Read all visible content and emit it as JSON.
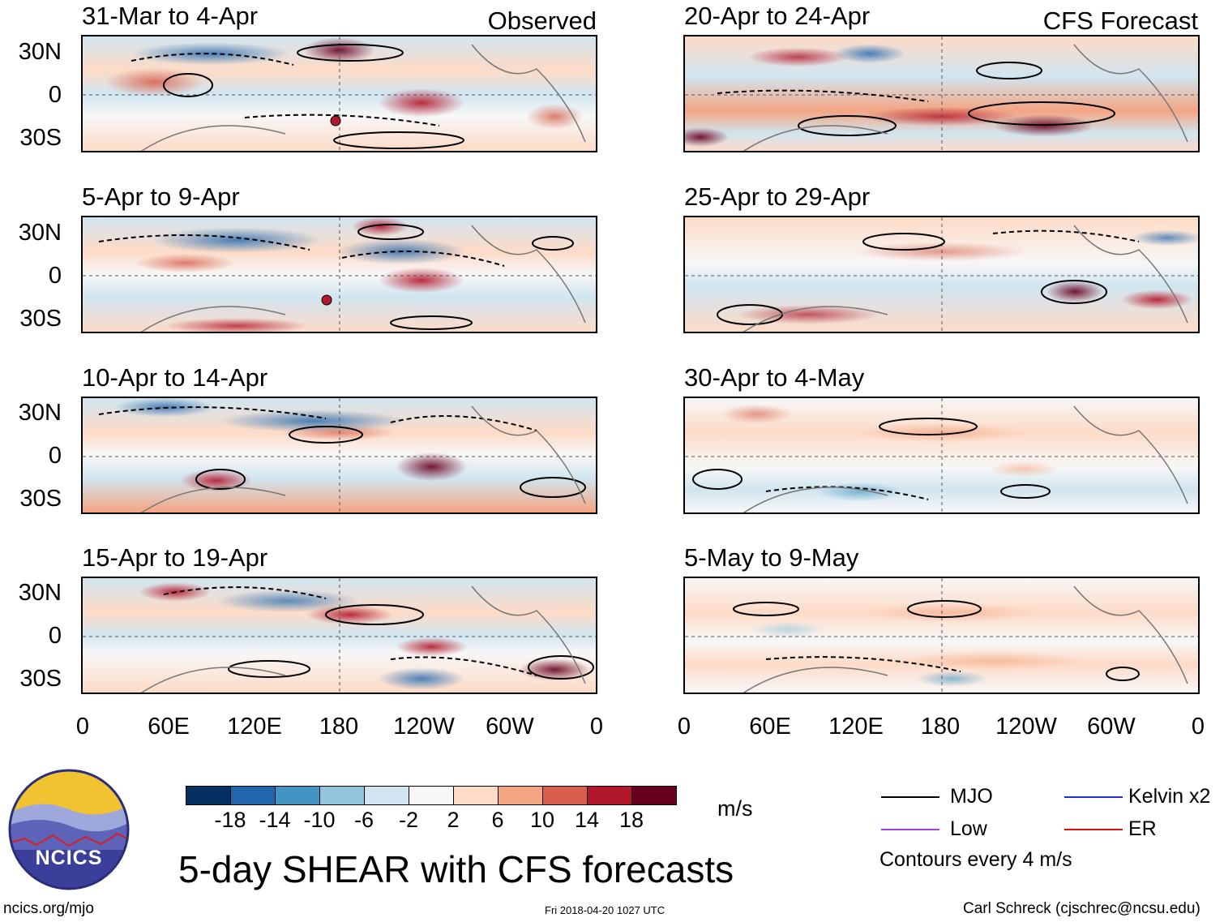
{
  "header": {
    "observed_label": "Observed",
    "forecast_label": "CFS Forecast"
  },
  "panels": {
    "observed": [
      {
        "title": "31-Mar to 4-Apr"
      },
      {
        "title": "5-Apr to 9-Apr"
      },
      {
        "title": "10-Apr to 14-Apr"
      },
      {
        "title": "15-Apr to 19-Apr"
      }
    ],
    "forecast": [
      {
        "title": "20-Apr to 24-Apr"
      },
      {
        "title": "25-Apr to 29-Apr"
      },
      {
        "title": "30-Apr to 4-May"
      },
      {
        "title": "5-May to 9-May"
      }
    ]
  },
  "axes": {
    "lat_labels": [
      "30N",
      "0",
      "30S"
    ],
    "lon_labels": [
      "0",
      "60E",
      "120E",
      "180",
      "120W",
      "60W",
      "0"
    ]
  },
  "colorbar": {
    "labels": [
      "-18",
      "-14",
      "-10",
      "-6",
      "-2",
      "2",
      "6",
      "10",
      "14",
      "18"
    ],
    "colors": [
      "#053061",
      "#2166ac",
      "#4393c3",
      "#92c5de",
      "#d1e5f0",
      "#f7f7f7",
      "#fddbc7",
      "#f4a582",
      "#d6604d",
      "#b2182b",
      "#67001f"
    ],
    "units": "m/s"
  },
  "legend": {
    "mjo": "MJO",
    "kelvin": "Kelvin x2",
    "low": "Low",
    "er": "ER",
    "mjo_color": "#000000",
    "kelvin_color": "#1f2fd6",
    "low_color": "#a040e0",
    "er_color": "#e01010",
    "note": "Contours every 4 m/s"
  },
  "logo": {
    "text": "NCICS"
  },
  "footer": {
    "main_title": "5-day SHEAR with CFS forecasts",
    "url": "ncics.org/mjo",
    "timestamp": "Fri 2018-04-20 1027 UTC",
    "author": "Carl Schreck (cjschrec@ncsu.edu)"
  }
}
